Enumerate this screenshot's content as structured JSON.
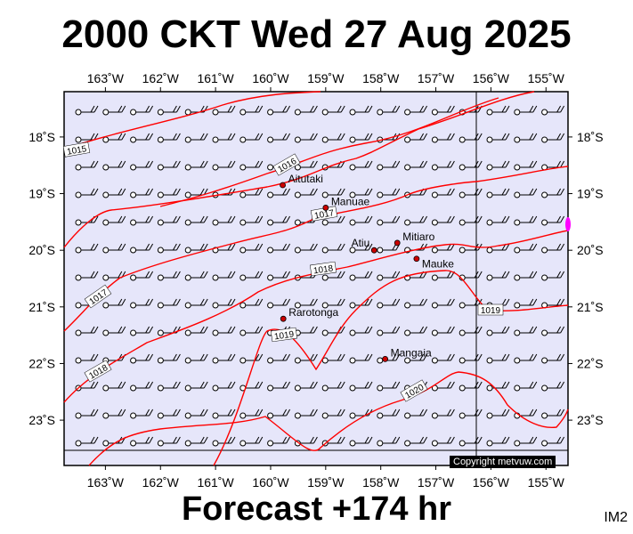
{
  "header": {
    "title": "2000 CKT Wed 27 Aug 2025"
  },
  "footer": {
    "forecast": "Forecast +174 hr",
    "model": "IM2",
    "copyright": "Copyright metvuw.com"
  },
  "map": {
    "background": "#e6e6fa",
    "lon_range": [
      -163.75,
      -154.6
    ],
    "lat_range": [
      -23.8,
      -17.2
    ],
    "lon_ticks": [
      "163˚W",
      "162˚W",
      "161˚W",
      "160˚W",
      "159˚W",
      "158˚W",
      "157˚W",
      "156˚W",
      "155˚W"
    ],
    "lon_tick_values": [
      -163,
      -162,
      -161,
      -160,
      -159,
      -158,
      -157,
      -156,
      -155
    ],
    "lat_ticks": [
      "18˚S",
      "19˚S",
      "20˚S",
      "21˚S",
      "22˚S",
      "23˚S"
    ],
    "lat_tick_values": [
      -18,
      -19,
      -20,
      -21,
      -22,
      -23
    ],
    "isobar_color": "#ff0000",
    "isobar_labels": [
      "1015",
      "1016",
      "1017",
      "1018",
      "1017",
      "1019",
      "1018",
      "1019",
      "1020"
    ],
    "places": [
      {
        "name": "Aitutaki",
        "lon": -159.78,
        "lat": -18.85
      },
      {
        "name": "Manuae",
        "lon": -159.0,
        "lat": -19.25
      },
      {
        "name": "Mitiaro",
        "lon": -157.7,
        "lat": -19.87
      },
      {
        "name": "Atiu",
        "lon": -158.12,
        "lat": -20.0
      },
      {
        "name": "Mauke",
        "lon": -157.35,
        "lat": -20.15
      },
      {
        "name": "Rarotonga",
        "lon": -159.77,
        "lat": -21.21
      },
      {
        "name": "Mangaia",
        "lon": -157.92,
        "lat": -21.92
      }
    ]
  }
}
